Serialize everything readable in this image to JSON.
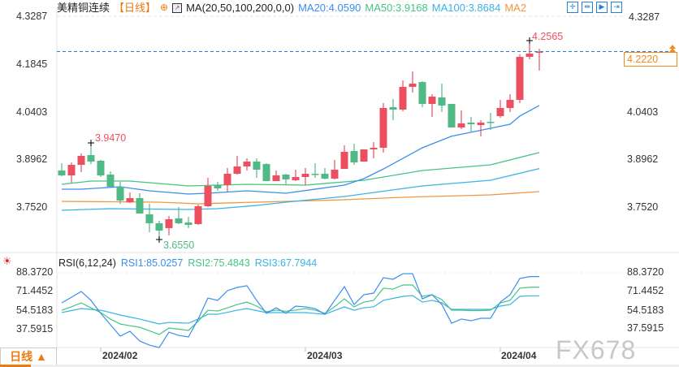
{
  "header": {
    "symbol": "美精铜连续",
    "period": "【日线】",
    "ma_label": "MA(20,50,100,200,0,0)",
    "ma20": "MA20:4.0590",
    "ma50": "MA50:3.9168",
    "ma100": "MA100:3.8684",
    "ma200": "MA2",
    "toolbar": [
      "crosshair-icon",
      "zoom-range-icon",
      "play-icon",
      "goto-end-icon"
    ]
  },
  "colors": {
    "up": "#ec4f5f",
    "down": "#4fba85",
    "ma20": "#3a8ef0",
    "ma50": "#45c484",
    "ma100": "#39b3e6",
    "ma200": "#f29540",
    "rsi1": "#3a8ef0",
    "rsi2": "#45c484",
    "rsi3": "#39b3e6",
    "last": "#f08a1c"
  },
  "price_axis": {
    "labels": [
      "4.3287",
      "4.1845",
      "4.0403",
      "3.8962",
      "3.7520"
    ],
    "range": [
      3.655,
      4.3287
    ]
  },
  "last_price": "4.2220",
  "annotations": {
    "high": "4.2565",
    "swing_high": "3.9470",
    "low": "3.6550"
  },
  "rsi": {
    "label": "RSI(6,12,24)",
    "rsi1": "RSI1:85.0257",
    "rsi2": "RSI2:75.4843",
    "rsi3": "RSI3:67.7944",
    "axis_labels": [
      "88.3720",
      "71.4452",
      "54.5183",
      "37.5915"
    ]
  },
  "x_axis": [
    "2024/02",
    "2024/03",
    "2024/04"
  ],
  "period_tab": "日线 ▲",
  "watermark": "FX678",
  "chart_data": {
    "type": "candlestick",
    "ohlc": [
      [
        3.8624,
        3.8845,
        3.8453,
        3.8477
      ],
      [
        3.8477,
        3.887,
        3.8256,
        3.8796
      ],
      [
        3.8796,
        3.914,
        3.8575,
        3.9066
      ],
      [
        3.9091,
        3.947,
        3.882,
        3.8894
      ],
      [
        3.8919,
        3.8943,
        3.8428,
        3.8477
      ],
      [
        3.8502,
        3.86,
        3.8134,
        3.8134
      ],
      [
        3.8134,
        3.8281,
        3.7619,
        3.7717
      ],
      [
        3.7668,
        3.7962,
        3.7643,
        3.779
      ],
      [
        3.779,
        3.7938,
        3.7324,
        3.7324
      ],
      [
        3.7299,
        3.7619,
        3.676,
        3.703
      ],
      [
        3.703,
        3.7103,
        3.655,
        3.6809
      ],
      [
        3.6883,
        3.725,
        3.6662,
        3.7152
      ],
      [
        3.7177,
        3.752,
        3.7005,
        3.703
      ],
      [
        3.7054,
        3.7226,
        3.6883,
        3.6981
      ],
      [
        3.7005,
        3.7594,
        3.6981,
        3.7545
      ],
      [
        3.7545,
        3.8404,
        3.752,
        3.8158
      ],
      [
        3.8183,
        3.8281,
        3.8011,
        3.8085
      ],
      [
        3.8183,
        3.8698,
        3.7987,
        3.8526
      ],
      [
        3.8526,
        3.9066,
        3.8502,
        3.8747
      ],
      [
        3.8747,
        3.8993,
        3.8624,
        3.8894
      ],
      [
        3.8894,
        3.8993,
        3.8404,
        3.8649
      ],
      [
        3.882,
        3.8845,
        3.8305,
        3.8305
      ],
      [
        3.8305,
        3.8624,
        3.8305,
        3.8477
      ],
      [
        3.8502,
        3.8526,
        3.8207,
        3.8355
      ],
      [
        3.833,
        3.8649,
        3.8305,
        3.8428
      ],
      [
        3.8428,
        3.8698,
        3.8183,
        3.8526
      ],
      [
        3.8526,
        3.8845,
        3.8404,
        3.8502
      ],
      [
        3.8526,
        3.8698,
        3.8355,
        3.8379
      ],
      [
        3.8379,
        3.8943,
        3.8355,
        3.8649
      ],
      [
        3.8673,
        3.9385,
        3.8673,
        3.9189
      ],
      [
        3.9213,
        3.9434,
        3.8796,
        3.887
      ],
      [
        3.8894,
        3.9262,
        3.8894,
        3.9262
      ],
      [
        3.9262,
        3.9483,
        3.8993,
        3.9311
      ],
      [
        3.9311,
        4.0661,
        3.9164,
        4.0514
      ],
      [
        4.0539,
        4.0784,
        4.0146,
        4.0465
      ],
      [
        4.0465,
        4.1348,
        4.0416,
        4.1152
      ],
      [
        4.1152,
        4.1618,
        4.098,
        4.125
      ],
      [
        4.1299,
        4.1324,
        4.0539,
        4.0637
      ],
      [
        4.0637,
        4.0931,
        4.0244,
        4.0857
      ],
      [
        4.0833,
        4.125,
        4.0391,
        4.0588
      ],
      [
        4.0637,
        4.0637,
        3.9925,
        3.9925
      ],
      [
        3.9925,
        4.044,
        3.9876,
        4.0048
      ],
      [
        4.0072,
        4.0244,
        3.9778,
        4.0023
      ],
      [
        3.9998,
        4.0146,
        3.9655,
        4.0072
      ],
      [
        4.0097,
        4.0367,
        3.9851,
        4.0072
      ],
      [
        4.0269,
        4.0759,
        4.022,
        4.0514
      ],
      [
        4.0514,
        4.0931,
        4.0391,
        4.0759
      ],
      [
        4.0759,
        4.2134,
        4.0661,
        4.206
      ],
      [
        4.206,
        4.2565,
        4.1986,
        4.2158
      ],
      [
        4.2183,
        4.2305,
        4.1643,
        4.222
      ]
    ],
    "ma": {
      "ma20": [
        [
          0,
          3.806
        ],
        [
          2,
          3.806
        ],
        [
          6,
          3.8134
        ],
        [
          9,
          3.8011
        ],
        [
          13,
          3.7913
        ],
        [
          15,
          3.7938
        ],
        [
          19,
          3.8011
        ],
        [
          23,
          3.7938
        ],
        [
          29,
          3.8183
        ],
        [
          31,
          3.838
        ],
        [
          33,
          3.867
        ],
        [
          35,
          3.899
        ],
        [
          37,
          3.9311
        ],
        [
          40,
          3.966
        ],
        [
          44,
          3.99
        ],
        [
          46,
          4.0023
        ],
        [
          47,
          4.027
        ],
        [
          49,
          4.059
        ]
      ],
      "ma50": [
        [
          0,
          3.8207
        ],
        [
          3,
          3.8305
        ],
        [
          7,
          3.8305
        ],
        [
          10,
          3.8232
        ],
        [
          13,
          3.8158
        ],
        [
          16,
          3.8183
        ],
        [
          19,
          3.8207
        ],
        [
          25,
          3.8183
        ],
        [
          31,
          3.833
        ],
        [
          37,
          3.8624
        ],
        [
          44,
          3.8796
        ],
        [
          49,
          3.9168
        ]
      ],
      "ma100": [
        [
          0,
          3.7422
        ],
        [
          5,
          3.7471
        ],
        [
          13,
          3.7447
        ],
        [
          16,
          3.7471
        ],
        [
          20,
          3.7569
        ],
        [
          23,
          3.7668
        ],
        [
          29,
          3.784
        ],
        [
          37,
          3.8158
        ],
        [
          44,
          3.833
        ],
        [
          49,
          3.8684
        ]
      ],
      "ma200": [
        [
          0,
          3.7692
        ],
        [
          10,
          3.7668
        ],
        [
          14,
          3.7619
        ],
        [
          20,
          3.7668
        ],
        [
          23,
          3.7692
        ],
        [
          29,
          3.7741
        ],
        [
          35,
          3.7815
        ],
        [
          44,
          3.7889
        ],
        [
          49,
          3.7987
        ]
      ]
    },
    "rsi1": [
      61.5,
      66.5,
      71.7,
      63.7,
      52.1,
      41.9,
      31.7,
      36.1,
      27.4,
      23.7,
      21.5,
      35.3,
      32.4,
      31.0,
      47.0,
      65.8,
      63.7,
      72.4,
      75.3,
      76.8,
      63.7,
      52.1,
      57.1,
      52.1,
      58.6,
      57.9,
      56.4,
      51.3,
      63.7,
      76.0,
      60.0,
      68.8,
      70.2,
      84.0,
      82.6,
      87.6,
      87.6,
      65.1,
      68.8,
      60.0,
      43.3,
      47.0,
      45.5,
      47.7,
      47.7,
      62.2,
      68.8,
      83.3,
      85.0,
      85.03
    ],
    "rsi2": [
      54.9,
      58,
      61.5,
      57,
      52.8,
      47,
      42.6,
      41,
      39.7,
      36.5,
      33.2,
      39,
      38,
      36.8,
      45,
      54.9,
      54.2,
      57,
      60,
      62.2,
      58.6,
      53.5,
      55,
      54,
      55,
      56.4,
      55,
      52.1,
      58,
      65.1,
      57.9,
      62.2,
      63.7,
      74.6,
      73.8,
      77.5,
      77.5,
      67.3,
      68.8,
      64.4,
      54.9,
      54.9,
      54.6,
      54.6,
      54.9,
      61.5,
      63.7,
      74.6,
      75.5,
      75.48
    ],
    "rsi3": [
      52.8,
      54.6,
      56.4,
      55.6,
      54.9,
      52.8,
      50.6,
      48.8,
      47,
      44.8,
      42.6,
      44,
      43.6,
      43.3,
      47,
      51.3,
      51.3,
      53,
      54.9,
      56.4,
      54.6,
      52.8,
      52.8,
      52.8,
      52.8,
      52.8,
      52,
      51.3,
      54.6,
      57.9,
      54.9,
      57.1,
      57.9,
      63.7,
      65.5,
      67.3,
      68,
      62.2,
      63.7,
      61.5,
      55.7,
      55.7,
      55.7,
      55.7,
      55.7,
      58.6,
      60,
      67.3,
      67.8,
      67.79
    ],
    "x_ticks": [
      {
        "label": "2024/02",
        "index": 4
      },
      {
        "label": "2024/03",
        "index": 25
      },
      {
        "label": "2024/04",
        "index": 45
      }
    ]
  }
}
